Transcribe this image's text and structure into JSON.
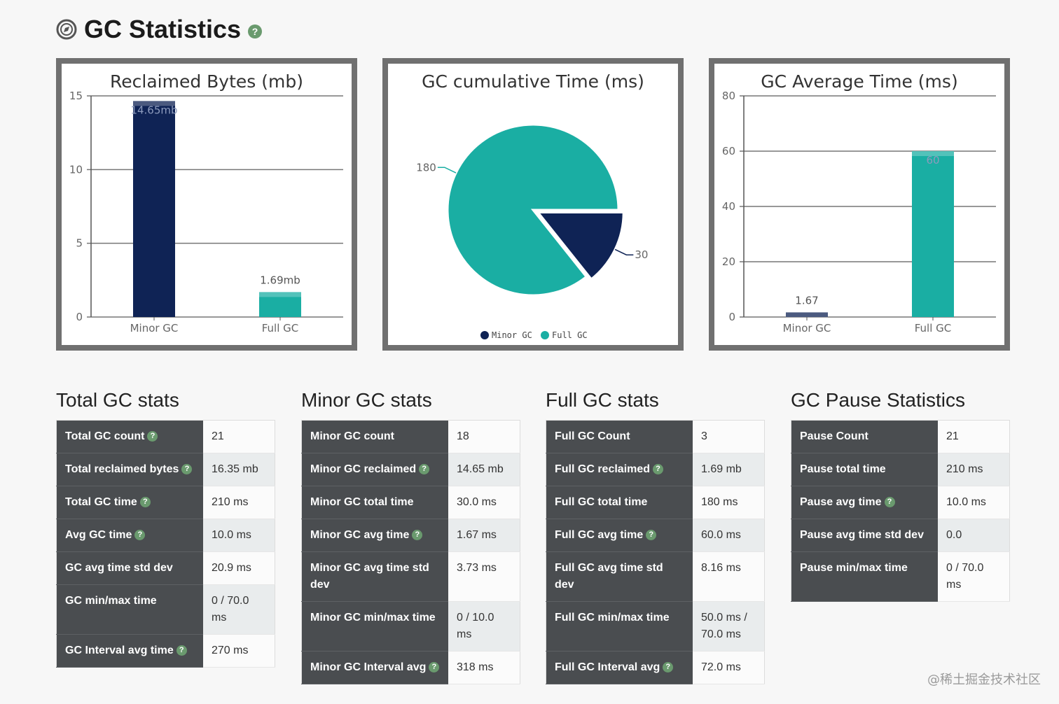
{
  "page": {
    "title": "GC Statistics",
    "watermark": "@稀土掘金技术社区",
    "colors": {
      "minor": "#0f2355",
      "full": "#1aaea3",
      "help": "#6a9a6e",
      "key_bg": "#4a4d50"
    }
  },
  "chart_data": [
    {
      "type": "bar",
      "title": "Reclaimed Bytes (mb)",
      "categories": [
        "Minor GC",
        "Full GC"
      ],
      "values": [
        14.65,
        1.69
      ],
      "data_labels": [
        "14.65mb",
        "1.69mb"
      ],
      "yticks": [
        "0",
        "5",
        "10",
        "15"
      ],
      "ylim": [
        0,
        15
      ],
      "grid": true
    },
    {
      "type": "pie",
      "title": "GC cumulative Time (ms)",
      "labels": [
        "Minor GC",
        "Full GC"
      ],
      "values": [
        30,
        180
      ],
      "data_labels": [
        "30",
        "180"
      ],
      "legend": [
        "Minor GC",
        "Full GC"
      ],
      "legend_position": "bottom"
    },
    {
      "type": "bar",
      "title": "GC Average Time (ms)",
      "categories": [
        "Minor GC",
        "Full GC"
      ],
      "values": [
        1.67,
        60
      ],
      "data_labels": [
        "1.67",
        "60"
      ],
      "yticks": [
        "0",
        "20",
        "40",
        "60",
        "80"
      ],
      "ylim": [
        0,
        80
      ],
      "grid": true
    }
  ],
  "sections": [
    {
      "title": "Total GC stats",
      "rows": [
        {
          "key": "Total GC count",
          "help": true,
          "value": "21"
        },
        {
          "key": "Total reclaimed bytes",
          "help": true,
          "value": "16.35 mb"
        },
        {
          "key": "Total GC time",
          "help": true,
          "value": "210 ms"
        },
        {
          "key": "Avg GC time",
          "help": true,
          "value": "10.0 ms"
        },
        {
          "key": "GC avg time std dev",
          "help": false,
          "value": "20.9 ms"
        },
        {
          "key": "GC min/max time",
          "help": false,
          "value": "0 / 70.0 ms"
        },
        {
          "key": "GC Interval avg time",
          "help": true,
          "value": "270 ms"
        }
      ]
    },
    {
      "title": "Minor GC stats",
      "rows": [
        {
          "key": "Minor GC count",
          "help": false,
          "value": "18"
        },
        {
          "key": "Minor GC reclaimed",
          "help": true,
          "value": "14.65 mb"
        },
        {
          "key": "Minor GC total time",
          "help": false,
          "value": "30.0 ms"
        },
        {
          "key": "Minor GC avg time",
          "help": true,
          "value": "1.67 ms"
        },
        {
          "key": "Minor GC avg time std dev",
          "help": false,
          "value": "3.73 ms"
        },
        {
          "key": "Minor GC min/max time",
          "help": false,
          "value": "0 / 10.0 ms"
        },
        {
          "key": "Minor GC Interval avg",
          "help": true,
          "value": "318 ms"
        }
      ]
    },
    {
      "title": "Full GC stats",
      "rows": [
        {
          "key": "Full GC Count",
          "help": false,
          "value": "3"
        },
        {
          "key": "Full GC reclaimed",
          "help": true,
          "value": "1.69 mb"
        },
        {
          "key": "Full GC total time",
          "help": false,
          "value": "180 ms"
        },
        {
          "key": "Full GC avg time",
          "help": true,
          "value": "60.0 ms"
        },
        {
          "key": "Full GC avg time std dev",
          "help": false,
          "value": "8.16 ms"
        },
        {
          "key": "Full GC min/max time",
          "help": false,
          "value": "50.0 ms / 70.0 ms"
        },
        {
          "key": "Full GC Interval avg",
          "help": true,
          "value": "72.0 ms"
        }
      ]
    },
    {
      "title": "GC Pause Statistics",
      "rows": [
        {
          "key": "Pause Count",
          "help": false,
          "value": "21"
        },
        {
          "key": "Pause total time",
          "help": false,
          "value": "210 ms"
        },
        {
          "key": "Pause avg time",
          "help": true,
          "value": "10.0 ms"
        },
        {
          "key": "Pause avg time std dev",
          "help": false,
          "value": "0.0"
        },
        {
          "key": "Pause min/max time",
          "help": false,
          "value": "0 / 70.0 ms"
        }
      ]
    }
  ]
}
